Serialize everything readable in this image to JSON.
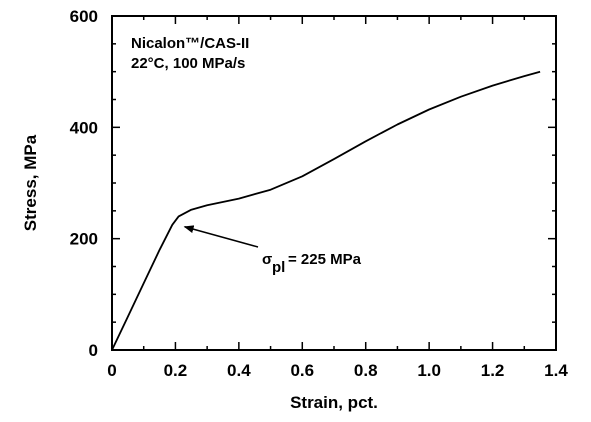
{
  "chart_data": {
    "type": "line",
    "xlabel": "Strain, pct.",
    "ylabel": "Stress, MPa",
    "xlim": [
      0,
      1.4
    ],
    "ylim": [
      0,
      600
    ],
    "x_ticks": [
      0,
      0.2,
      0.4,
      0.6,
      0.8,
      1.0,
      1.2,
      1.4
    ],
    "x_tick_labels": [
      "0",
      "0.2",
      "0.4",
      "0.6",
      "0.8",
      "1.0",
      "1.2",
      "1.4"
    ],
    "y_ticks": [
      0,
      200,
      400,
      600
    ],
    "y_tick_labels": [
      "0",
      "200",
      "400",
      "600"
    ],
    "grid": false,
    "legend": {
      "line1": "Nicalon™/CAS-II",
      "line2": "22°C,  100  MPa/s",
      "placement": "top-left"
    },
    "annotation": {
      "symbol": "σ",
      "subscript": "pl",
      "text": " = 225  MPa",
      "x": 0.21,
      "y": 225
    },
    "series": [
      {
        "x": [
          0,
          0.05,
          0.1,
          0.15,
          0.19,
          0.21,
          0.25,
          0.3,
          0.4,
          0.5,
          0.6,
          0.7,
          0.8,
          0.9,
          1.0,
          1.1,
          1.2,
          1.3,
          1.35
        ],
        "y": [
          0,
          60,
          120,
          180,
          225,
          240,
          252,
          260,
          272,
          288,
          312,
          343,
          375,
          405,
          432,
          455,
          475,
          492,
          500
        ]
      }
    ]
  }
}
